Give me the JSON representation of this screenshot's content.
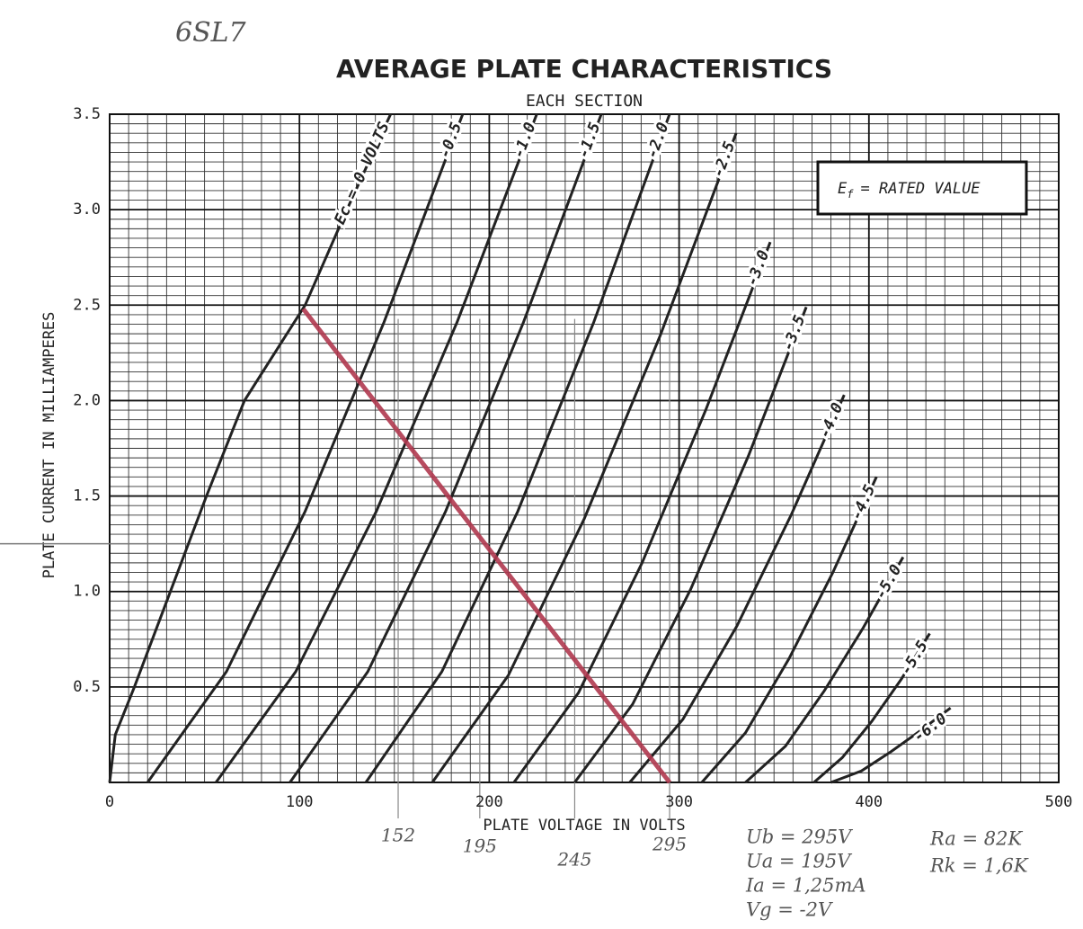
{
  "chart_data": {
    "type": "line",
    "annotation": "6SL7",
    "title": "AVERAGE PLATE CHARACTERISTICS",
    "subtitle": "EACH SECTION",
    "x_label": "PLATE VOLTAGE IN VOLTS",
    "y_label": "PLATE CURRENT IN MILLIAMPERES",
    "xlim": [
      0,
      500
    ],
    "ylim": [
      0,
      3.5
    ],
    "xticks": [
      0,
      100,
      200,
      300,
      400,
      500
    ],
    "yticks": [
      0.5,
      {
        "value": 1,
        "label": "1.0"
      },
      1.5,
      {
        "value": 2,
        "label": "2.0"
      },
      2.5,
      {
        "value": 3,
        "label": "3.0"
      },
      3.5
    ],
    "grid": true,
    "box": {
      "symbol": "E",
      "subscript": "f",
      "text": "= RATED VALUE"
    },
    "series": [
      {
        "name": "Ec = 0 VOLTS",
        "color": "#222222",
        "x": [
          0,
          3,
          13,
          32,
          51,
          71,
          103,
          125,
          148
        ],
        "values": [
          0,
          0.25,
          0.5,
          1.0,
          1.5,
          2.0,
          2.5,
          3.0,
          3.5
        ]
      },
      {
        "name": "-0.5",
        "color": "#222222",
        "x": [
          20,
          61.5,
          103,
          144.5,
          186
        ],
        "values": [
          0,
          0.58,
          1.42,
          2.41,
          3.5
        ]
      },
      {
        "name": "-1.0",
        "color": "#222222",
        "x": [
          56,
          98,
          140.5,
          183,
          225
        ],
        "values": [
          0,
          0.58,
          1.42,
          2.41,
          3.5
        ]
      },
      {
        "name": "-1.5",
        "color": "#222222",
        "x": [
          95,
          136,
          177,
          218,
          259
        ],
        "values": [
          0,
          0.58,
          1.42,
          2.41,
          3.5
        ]
      },
      {
        "name": "-2.0",
        "color": "#222222",
        "x": [
          135,
          175,
          215,
          255,
          295
        ],
        "values": [
          0,
          0.58,
          1.42,
          2.41,
          3.5
        ]
      },
      {
        "name": "-2.5",
        "color": "#222222",
        "x": [
          170,
          210,
          250,
          290,
          330
        ],
        "values": [
          0,
          0.56,
          1.38,
          2.34,
          3.4
        ]
      },
      {
        "name": "-3.0",
        "color": "#222222",
        "x": [
          213,
          247,
          280.5,
          314,
          348
        ],
        "values": [
          0,
          0.47,
          1.15,
          1.95,
          2.83
        ]
      },
      {
        "name": "-3.5",
        "color": "#222222",
        "x": [
          245,
          275.5,
          306,
          336.5,
          367
        ],
        "values": [
          0,
          0.41,
          1.01,
          1.71,
          2.49
        ]
      },
      {
        "name": "-4.0",
        "color": "#222222",
        "x": [
          274,
          302,
          330.5,
          359,
          387
        ],
        "values": [
          0,
          0.33,
          0.82,
          1.4,
          2.03
        ]
      },
      {
        "name": "-4.5",
        "color": "#222222",
        "x": [
          312,
          335,
          358,
          381,
          404
        ],
        "values": [
          0,
          0.26,
          0.65,
          1.1,
          1.6
        ]
      },
      {
        "name": "-5.0",
        "color": "#222222",
        "x": [
          335,
          356,
          376.5,
          397,
          418
        ],
        "values": [
          0,
          0.19,
          0.48,
          0.81,
          1.18
        ]
      },
      {
        "name": "-5.5",
        "color": "#222222",
        "x": [
          371,
          386,
          401.5,
          417,
          432
        ],
        "values": [
          0,
          0.13,
          0.32,
          0.54,
          0.78
        ]
      },
      {
        "name": "-6.0",
        "color": "#222222",
        "x": [
          380,
          396,
          411.5,
          427,
          443
        ],
        "values": [
          0,
          0.06,
          0.16,
          0.27,
          0.39
        ]
      }
    ],
    "load_line": {
      "color": "#b0384f",
      "x": [
        102,
        295
      ],
      "values": [
        2.48,
        0
      ]
    },
    "guide_x": [
      152,
      195,
      245,
      295
    ],
    "guide_y": 1.25,
    "notes": [
      "Ub = 295V",
      "Ua = 195V",
      "Ia = 1,25mA",
      "Vg = -2V"
    ],
    "notes2": [
      "Ra = 82K",
      "Rk = 1,6K"
    ]
  }
}
